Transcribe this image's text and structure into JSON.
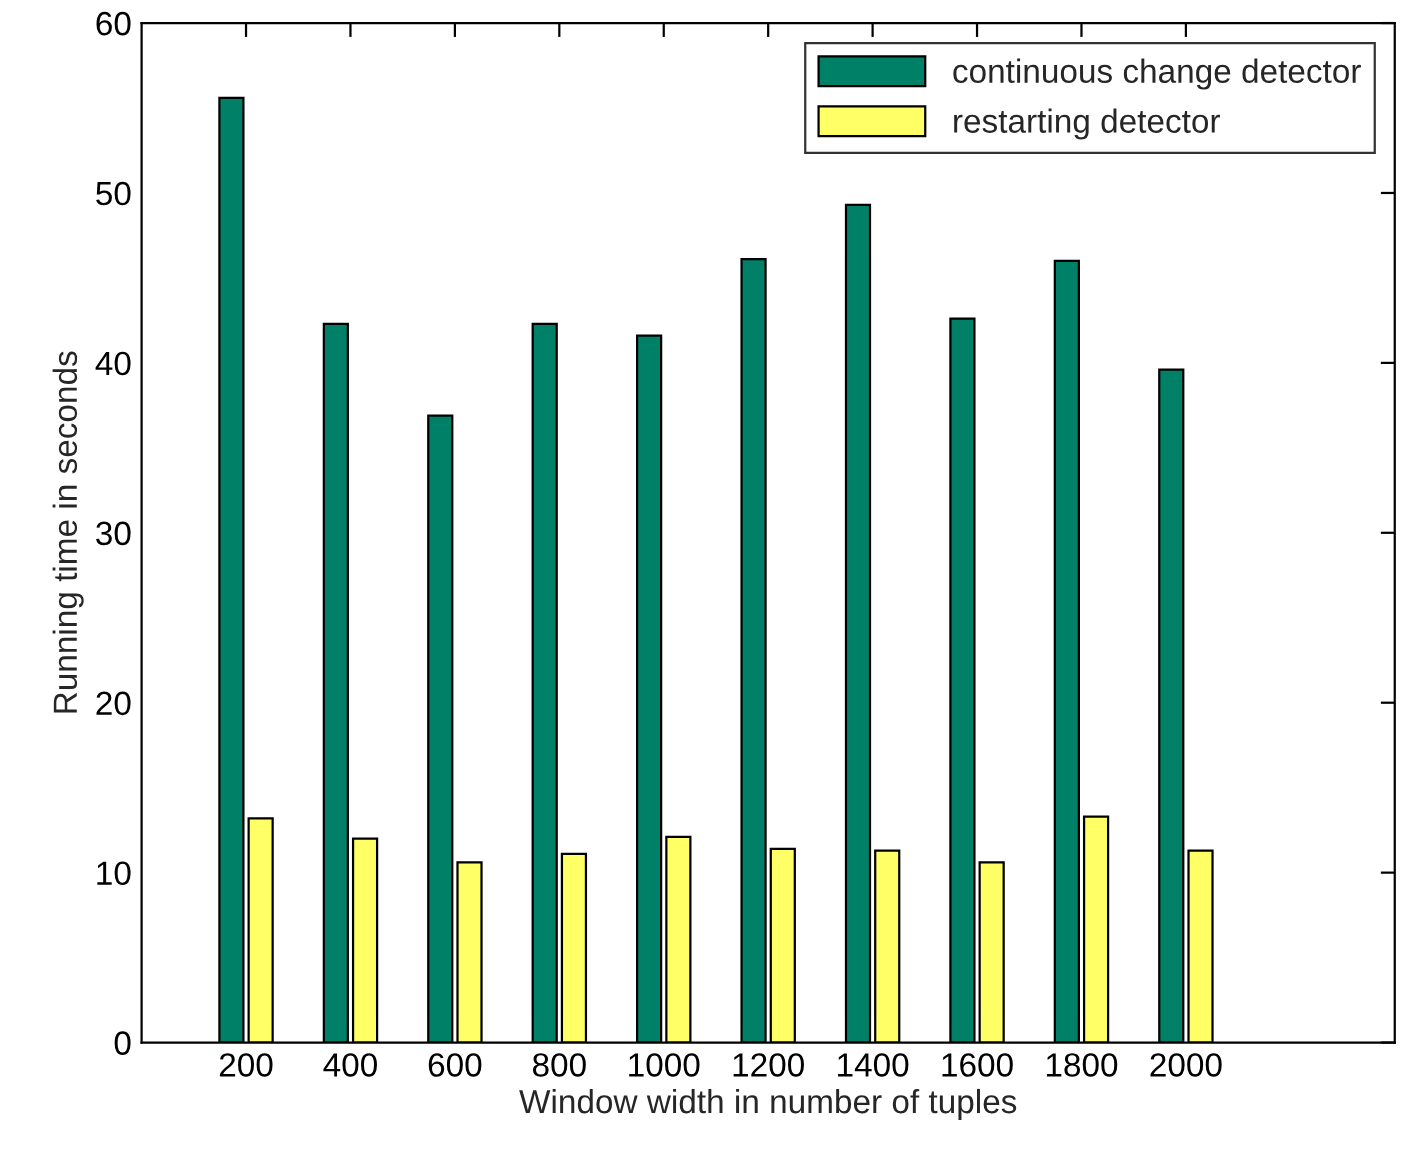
{
  "chart_data": {
    "type": "bar",
    "xlabel": "Window width in number of tuples",
    "ylabel": "Running time in seconds",
    "x": [
      200,
      400,
      600,
      800,
      1000,
      1200,
      1400,
      1600,
      1800,
      2000
    ],
    "series": [
      {
        "name": "continuous change detector",
        "color": "#008066",
        "values": [
          55.6,
          42.3,
          36.9,
          42.3,
          41.6,
          46.1,
          49.3,
          42.6,
          46.0,
          39.6
        ]
      },
      {
        "name": "restarting detector",
        "color": "#ffff66",
        "values": [
          13.2,
          12.0,
          10.6,
          11.1,
          12.1,
          11.4,
          11.3,
          10.6,
          13.3,
          11.3
        ]
      }
    ],
    "xlim": [
      0,
      2400
    ],
    "xticks": [
      200,
      400,
      600,
      800,
      1000,
      1200,
      1400,
      1600,
      1800,
      2000
    ],
    "ylim": [
      0,
      60
    ],
    "yticks": [
      0,
      10,
      20,
      30,
      40,
      50,
      60
    ],
    "grid": false,
    "legend": "top right"
  }
}
